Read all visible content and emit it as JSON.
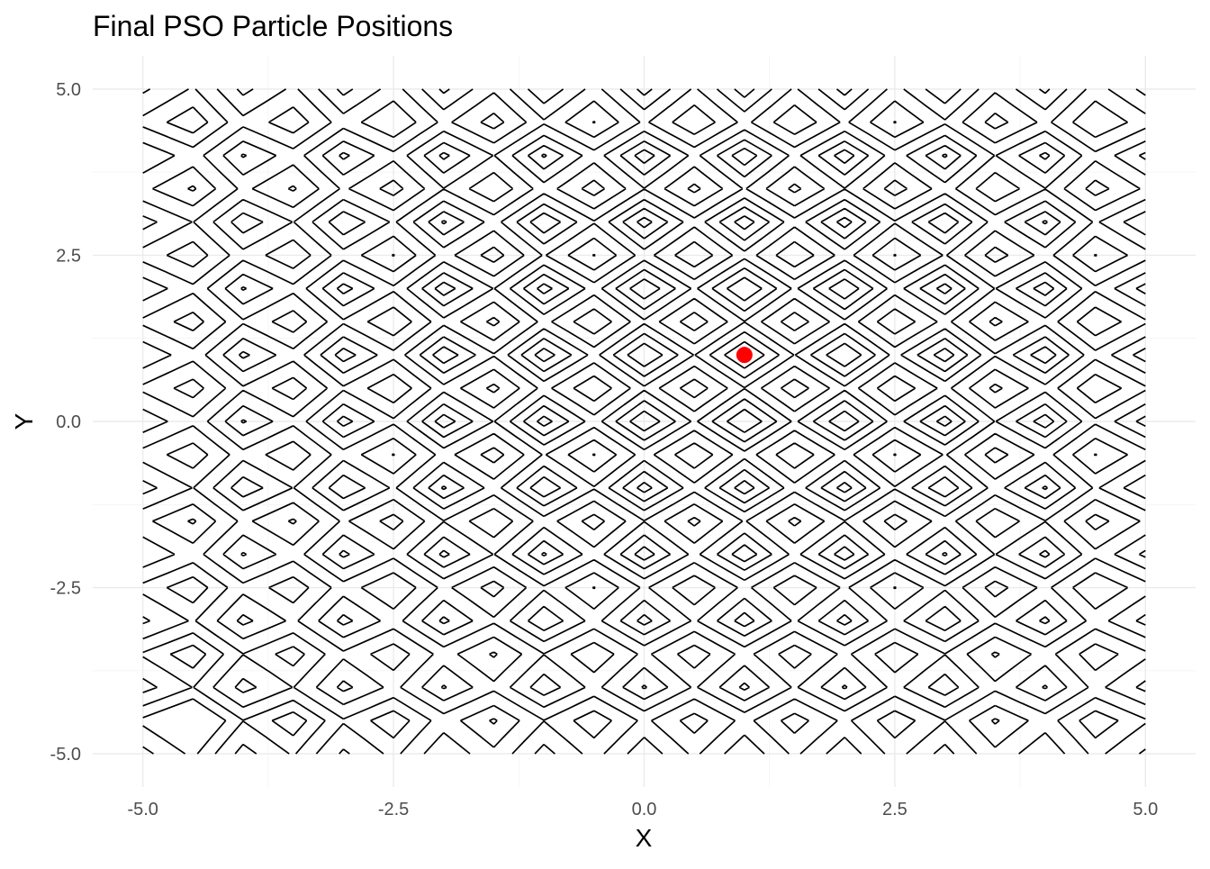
{
  "chart_data": {
    "type": "scatter",
    "title": "Final PSO Particle Positions",
    "xlabel": "X",
    "ylabel": "Y",
    "xlim": [
      -5.5,
      5.5
    ],
    "ylim": [
      -5.5,
      5.5
    ],
    "x_ticks": [
      -5.0,
      -2.5,
      0.0,
      2.5,
      5.0
    ],
    "y_ticks": [
      -5.0,
      -2.5,
      0.0,
      2.5,
      5.0
    ],
    "x_tick_labels": [
      "-5.0",
      "-2.5",
      "0.0",
      "2.5",
      "5.0"
    ],
    "y_tick_labels": [
      "-5.0",
      "-2.5",
      "0.0",
      "2.5",
      "5.0"
    ],
    "grid": true,
    "contour_field": {
      "x_range": [
        -5,
        5
      ],
      "y_range": [
        -5,
        5
      ],
      "center": [
        1,
        1
      ],
      "levels": [
        8,
        14,
        20,
        27,
        35,
        44,
        54,
        65,
        75,
        84
      ]
    },
    "points": [
      {
        "x": 1.0,
        "y": 1.0
      }
    ],
    "point_color": "#ff0000",
    "contour_color": "#000000"
  }
}
